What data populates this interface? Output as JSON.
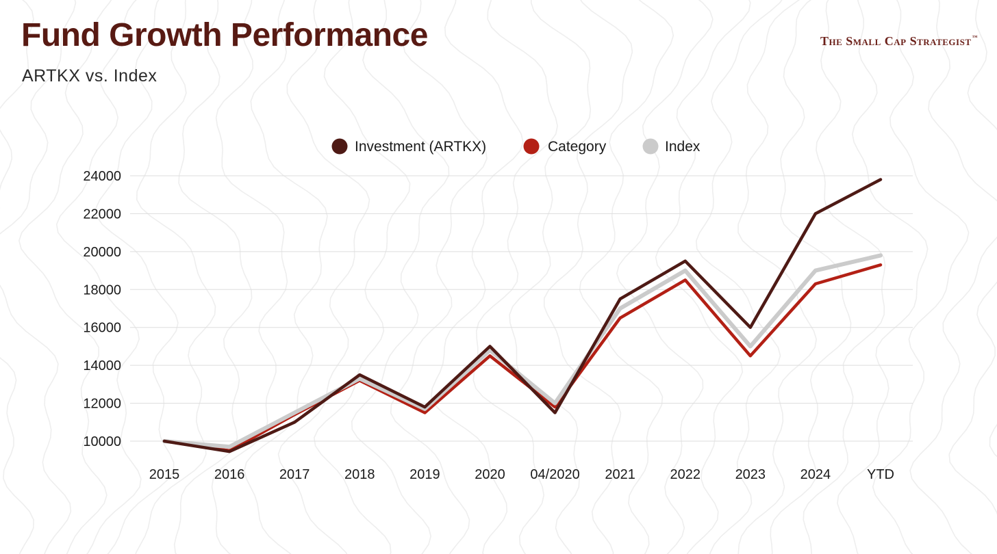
{
  "header": {
    "title": "Fund Growth Performance",
    "subtitle": "ARTKX vs. Index",
    "brand": "The Small Cap Strategist",
    "brand_tm": "™"
  },
  "colors": {
    "title": "#581a13",
    "investment": "#4e1a15",
    "category": "#b32015",
    "index": "#cbcbcb",
    "grid": "#dddddd",
    "background_lines": "#eeeeee"
  },
  "chart_data": {
    "type": "line",
    "title": "Fund Growth Performance",
    "subtitle": "ARTKX vs. Index",
    "xlabel": "",
    "ylabel": "",
    "categories": [
      "2015",
      "2016",
      "2017",
      "2018",
      "2019",
      "2020",
      "04/2020",
      "2021",
      "2022",
      "2023",
      "2024",
      "YTD"
    ],
    "ylim": [
      10000,
      24000
    ],
    "yticks": [
      10000,
      12000,
      14000,
      16000,
      18000,
      20000,
      22000,
      24000
    ],
    "grid": true,
    "legend_position": "top-center",
    "series": [
      {
        "name": "Investment (ARTKX)",
        "color": "#4e1a15",
        "values": [
          10000,
          9450,
          11000,
          13500,
          11800,
          15000,
          11500,
          17500,
          19500,
          16000,
          22000,
          23800
        ]
      },
      {
        "name": "Category",
        "color": "#b32015",
        "values": [
          10000,
          9500,
          11400,
          13200,
          11500,
          14500,
          11800,
          16500,
          18500,
          14500,
          18300,
          19300
        ]
      },
      {
        "name": "Index",
        "color": "#cbcbcb",
        "values": [
          10000,
          9700,
          11500,
          13300,
          11700,
          14800,
          12000,
          17000,
          19000,
          15000,
          19000,
          19800
        ]
      }
    ]
  }
}
